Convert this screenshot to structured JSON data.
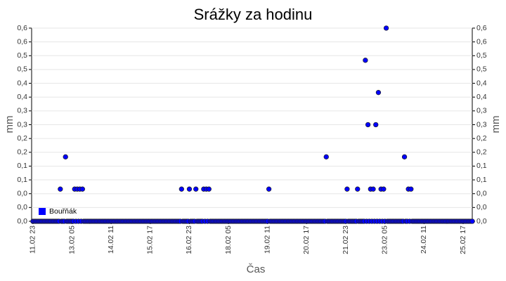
{
  "chart_data": {
    "type": "scatter",
    "title": "Srážky za hodinu",
    "x_label": "Čas",
    "y_label": "mm",
    "y2_label": "mm",
    "xlim": [
      -1,
      337
    ],
    "xticks": [
      {
        "value": 0,
        "label": "11.02 23"
      },
      {
        "value": 30,
        "label": "13.02 05"
      },
      {
        "value": 60,
        "label": "14.02 11"
      },
      {
        "value": 90,
        "label": "15.02 17"
      },
      {
        "value": 120,
        "label": "16.02 23"
      },
      {
        "value": 150,
        "label": "18.02 05"
      },
      {
        "value": 180,
        "label": "19.02 11"
      },
      {
        "value": 210,
        "label": "20.02 17"
      },
      {
        "value": 240,
        "label": "21.02 23"
      },
      {
        "value": 270,
        "label": "23.02 05"
      },
      {
        "value": 300,
        "label": "24.02 11"
      },
      {
        "value": 330,
        "label": "25.02 17"
      }
    ],
    "ylim": [
      0,
      0.6
    ],
    "yticks": [
      {
        "value": 0,
        "label": "0,0"
      },
      {
        "value": 0.0429,
        "label": "0,0"
      },
      {
        "value": 0.0857,
        "label": "0,0"
      },
      {
        "value": 0.1286,
        "label": "0,1"
      },
      {
        "value": 0.1714,
        "label": "0,1"
      },
      {
        "value": 0.2143,
        "label": "0,2"
      },
      {
        "value": 0.2571,
        "label": "0,2"
      },
      {
        "value": 0.3,
        "label": "0,3"
      },
      {
        "value": 0.3429,
        "label": "0,3"
      },
      {
        "value": 0.3857,
        "label": "0,4"
      },
      {
        "value": 0.4286,
        "label": "0,4"
      },
      {
        "value": 0.4714,
        "label": "0,5"
      },
      {
        "value": 0.5143,
        "label": "0,5"
      },
      {
        "value": 0.5571,
        "label": "0,6"
      },
      {
        "value": 0.6,
        "label": "0,6"
      }
    ],
    "grid": true,
    "legend": "bottom-left",
    "series": [
      {
        "name": "Bouřňák",
        "color": "#0000ff",
        "x": [
          0,
          1,
          2,
          3,
          4,
          5,
          6,
          7,
          8,
          9,
          10,
          11,
          12,
          13,
          14,
          15,
          16,
          17,
          18,
          19,
          20,
          21,
          22,
          23,
          24,
          25,
          26,
          27,
          28,
          29,
          30,
          31,
          32,
          33,
          34,
          35,
          36,
          37,
          38,
          39,
          40,
          41,
          42,
          43,
          44,
          45,
          46,
          47,
          48,
          49,
          50,
          51,
          52,
          53,
          54,
          55,
          56,
          57,
          58,
          59,
          60,
          61,
          62,
          63,
          64,
          65,
          66,
          67,
          68,
          69,
          70,
          71,
          72,
          73,
          74,
          75,
          76,
          77,
          78,
          79,
          80,
          81,
          82,
          83,
          84,
          85,
          86,
          87,
          88,
          89,
          90,
          91,
          92,
          93,
          94,
          95,
          96,
          97,
          98,
          99,
          100,
          101,
          102,
          103,
          104,
          105,
          106,
          107,
          108,
          109,
          110,
          111,
          112,
          113,
          114,
          115,
          116,
          117,
          118,
          119,
          120,
          121,
          122,
          123,
          124,
          125,
          126,
          127,
          128,
          129,
          130,
          131,
          132,
          133,
          134,
          135,
          136,
          137,
          138,
          139,
          140,
          141,
          142,
          143,
          144,
          145,
          146,
          147,
          148,
          149,
          150,
          151,
          152,
          153,
          154,
          155,
          156,
          157,
          158,
          159,
          160,
          161,
          162,
          163,
          164,
          165,
          166,
          167,
          168,
          169,
          170,
          171,
          172,
          173,
          174,
          175,
          176,
          177,
          178,
          179,
          180,
          181,
          182,
          183,
          184,
          185,
          186,
          187,
          188,
          189,
          190,
          191,
          192,
          193,
          194,
          195,
          196,
          197,
          198,
          199,
          200,
          201,
          202,
          203,
          204,
          205,
          206,
          207,
          208,
          209,
          210,
          211,
          212,
          213,
          214,
          215,
          216,
          217,
          218,
          219,
          220,
          221,
          222,
          223,
          224,
          225,
          226,
          227,
          228,
          229,
          230,
          231,
          232,
          233,
          234,
          235,
          236,
          237,
          238,
          239,
          240,
          241,
          242,
          243,
          244,
          245,
          246,
          247,
          248,
          249,
          250,
          251,
          252,
          253,
          254,
          255,
          256,
          257,
          258,
          259,
          260,
          261,
          262,
          263,
          264,
          265,
          266,
          267,
          268,
          269,
          270,
          271,
          272,
          273,
          274,
          275,
          276,
          277,
          278,
          279,
          280,
          281,
          282,
          283,
          284,
          285,
          286,
          287,
          288,
          289,
          290,
          291,
          292,
          293,
          294,
          295,
          296,
          297,
          298,
          299,
          300,
          301,
          302,
          303,
          304,
          305,
          306,
          307,
          308,
          309,
          310,
          311,
          312,
          313,
          314,
          315,
          316,
          317,
          318,
          319,
          320,
          321,
          322,
          323,
          324,
          325,
          326,
          327,
          328,
          329,
          330,
          331,
          332,
          333,
          334,
          335,
          336,
          337
        ],
        "values": [
          0,
          0,
          0,
          0,
          0,
          0,
          0,
          0,
          0,
          0,
          0,
          0,
          0,
          0,
          0,
          0,
          0,
          0,
          0,
          0,
          0,
          0.1,
          0,
          0,
          0,
          0.2,
          0,
          0,
          0,
          0,
          0,
          0,
          0.1,
          0,
          0.1,
          0,
          0.1,
          0,
          0.1,
          0,
          0,
          0,
          0,
          0,
          0,
          0,
          0,
          0,
          0,
          0,
          0,
          0,
          0,
          0,
          0,
          0,
          0,
          0,
          0,
          0,
          0,
          0,
          0,
          0,
          0,
          0,
          0,
          0,
          0,
          0,
          0,
          0,
          0,
          0,
          0,
          0,
          0,
          0,
          0,
          0,
          0,
          0,
          0,
          0,
          0,
          0,
          0,
          0,
          0,
          0,
          0,
          0,
          0,
          0,
          0,
          0,
          0,
          0,
          0,
          0,
          0,
          0,
          0,
          0,
          0,
          0,
          0,
          0,
          0,
          0,
          0,
          0,
          0,
          0,
          0.1,
          0,
          0,
          0,
          0,
          0,
          0.1,
          0,
          0,
          0,
          0,
          0.1,
          0,
          0,
          0,
          0,
          0,
          0.1,
          0,
          0.1,
          0,
          0.1,
          0,
          0,
          0,
          0,
          0,
          0,
          0,
          0,
          0,
          0,
          0,
          0,
          0,
          0,
          0,
          0,
          0,
          0,
          0,
          0,
          0,
          0,
          0,
          0,
          0,
          0,
          0,
          0,
          0,
          0,
          0,
          0,
          0,
          0,
          0,
          0,
          0,
          0,
          0,
          0,
          0,
          0,
          0,
          0,
          0,
          0.1,
          0,
          0,
          0,
          0,
          0,
          0,
          0,
          0,
          0,
          0,
          0,
          0,
          0,
          0,
          0,
          0,
          0,
          0,
          0,
          0,
          0,
          0,
          0,
          0,
          0,
          0,
          0,
          0,
          0,
          0,
          0,
          0,
          0,
          0,
          0,
          0,
          0,
          0,
          0,
          0,
          0,
          0,
          0,
          0.2,
          0,
          0,
          0,
          0,
          0,
          0,
          0,
          0,
          0,
          0,
          0,
          0,
          0,
          0,
          0,
          0.1,
          0,
          0,
          0,
          0,
          0,
          0,
          0,
          0.1,
          0,
          0,
          0,
          0,
          0,
          0.5,
          0,
          0.3,
          0,
          0.1,
          0,
          0.1,
          0,
          0.3,
          0,
          0.4,
          0,
          0.1,
          0,
          0.1,
          0,
          0.6,
          0,
          0,
          0,
          0,
          0,
          0,
          0,
          0,
          0,
          0,
          0,
          0,
          0,
          0.2,
          0,
          0,
          0.1,
          0,
          0.1,
          0,
          0,
          0,
          0,
          0,
          0,
          0,
          0,
          0,
          0,
          0,
          0,
          0,
          0,
          0,
          0,
          0,
          0,
          0,
          0,
          0,
          0,
          0,
          0,
          0,
          0,
          0,
          0,
          0,
          0,
          0,
          0,
          0,
          0,
          0,
          0,
          0,
          0,
          0,
          0,
          0,
          0,
          0,
          0,
          0,
          0,
          0
        ]
      }
    ]
  }
}
